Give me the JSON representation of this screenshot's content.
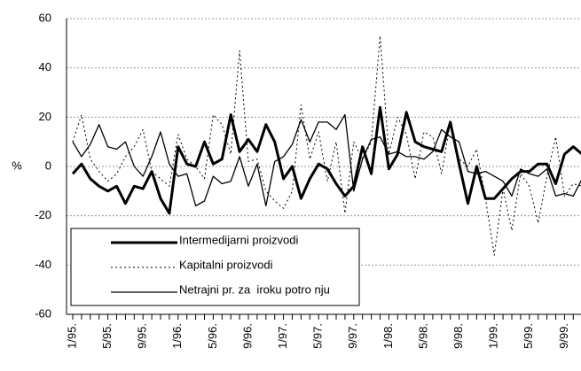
{
  "chart_data": {
    "type": "line",
    "y_axis_label": "%",
    "categories": [
      "1/95.",
      null,
      null,
      null,
      "5/95.",
      null,
      null,
      null,
      "9/95.",
      null,
      null,
      null,
      "1/96.",
      null,
      null,
      null,
      "5/96.",
      null,
      null,
      null,
      "9/96.",
      null,
      null,
      null,
      "1/97.",
      null,
      null,
      null,
      "5/97.",
      null,
      null,
      null,
      "9/97.",
      null,
      null,
      null,
      "1/98.",
      null,
      null,
      null,
      "5/98.",
      null,
      null,
      null,
      "9/98.",
      null,
      null,
      null,
      "1/99.",
      null,
      null,
      null,
      "5/99.",
      null,
      null,
      null,
      "9/99.",
      null,
      null
    ],
    "series": [
      {
        "name": "Intermedijarni proizvodi",
        "color": "#000000",
        "width": 3,
        "dash": "none",
        "values": [
          -3,
          1,
          -5,
          -8,
          -10,
          -8,
          -15,
          -8,
          -9,
          -2,
          -13,
          -19,
          8,
          1,
          0,
          10,
          1,
          3,
          21,
          6,
          11,
          6,
          17,
          10,
          -5,
          0,
          -13,
          -5,
          1,
          -1,
          -7,
          -12,
          -8,
          8,
          -3,
          24,
          -1,
          5,
          22,
          10,
          8,
          7,
          6,
          18,
          1,
          -15,
          0,
          -13,
          -13,
          -9,
          -5,
          -2,
          -2,
          1,
          1,
          -7,
          5,
          8,
          5
        ]
      },
      {
        "name": "Kapitalni proizvodi",
        "color": "#000000",
        "width": 1,
        "dash": "2 3",
        "values": [
          10,
          21,
          3,
          -2,
          -6,
          -3,
          4,
          8,
          15,
          -2,
          -5,
          -8,
          13,
          3,
          0,
          -5,
          21,
          17,
          5,
          47,
          2,
          3,
          -10,
          -14,
          -17,
          -10,
          25,
          3,
          14,
          -6,
          10,
          -19,
          10,
          3,
          10,
          53,
          5,
          20,
          13,
          -5,
          14,
          12,
          -3,
          18,
          3,
          0,
          7,
          -13,
          -36,
          -9,
          -26,
          -3,
          -8,
          -23,
          -4,
          12,
          -12,
          -7,
          -8
        ]
      },
      {
        "name": "Netrajni pr. za  iroku potro nju",
        "color": "#000000",
        "width": 1.3,
        "dash": "none",
        "values": [
          10,
          4,
          9,
          17,
          8,
          7,
          10,
          0,
          -4,
          4,
          14,
          1,
          -4,
          -3,
          -16,
          -14,
          -4,
          -7,
          -6,
          4,
          -8,
          1,
          -16,
          2,
          4,
          9,
          19,
          10,
          18,
          18,
          15,
          21,
          -10,
          3,
          11,
          12,
          5,
          6,
          4,
          4,
          3,
          6,
          15,
          12,
          10,
          -2,
          -3,
          -2,
          -4,
          -6,
          -12,
          -1,
          -3,
          -4,
          -1,
          -12,
          -11,
          -12,
          -5
        ]
      }
    ],
    "ylim": [
      -60,
      60
    ],
    "yticks": [
      -60,
      -40,
      -20,
      0,
      20,
      40,
      60
    ],
    "grid": true,
    "legend": "lower left"
  }
}
